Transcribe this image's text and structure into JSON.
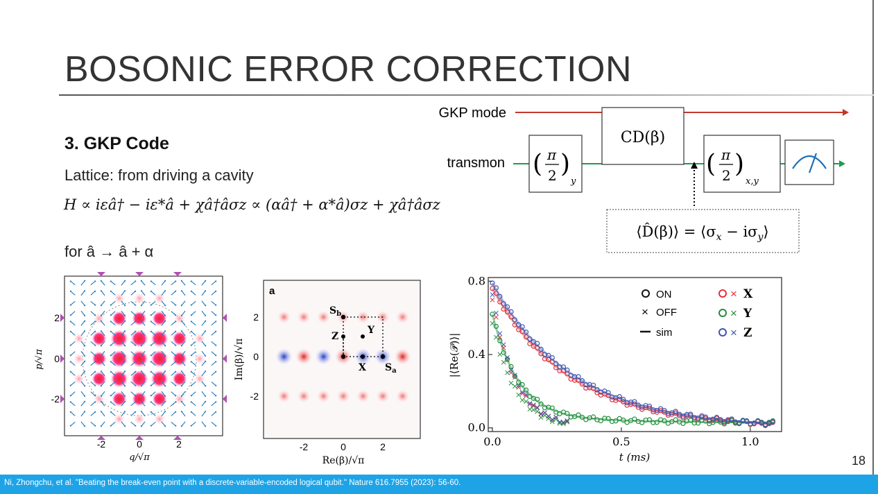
{
  "slide": {
    "title": "BOSONIC ERROR CORRECTION",
    "heading": "3. GKP Code",
    "subline": "Lattice: from driving a cavity",
    "equation": "H ∝ iεâ† − iε*â + χâ†âσz ∝ (αâ† + α*â)σz + χâ†âσz",
    "substitution": "for â → â + α",
    "page_number": "18",
    "citation": "Ni, Zhongchu, et al. \"Beating the break-even point with a discrete-variable-encoded logical qubit.\" Nature 616.7955 (2023): 56-60."
  },
  "circuit": {
    "mode_label": "GKP mode",
    "transmon_label": "transmon",
    "gate1": "(π/2)y",
    "gate_cd": "CD(β)",
    "gate2": "(π/2)x,y",
    "measurement_note": "⟨D̂(β)⟩ = ⟨σx − iσy⟩",
    "colors": {
      "mode_line": "#c0392b",
      "transmon_line": "#1b9e4b",
      "meter": "#1f6fb5"
    }
  },
  "panel1": {
    "xlabel": "q/√π",
    "ylabel": "p/√π",
    "xticks": [
      "-2",
      "0",
      "2"
    ],
    "yticks": [
      "2",
      "0",
      "-2"
    ]
  },
  "panel2": {
    "panel_letter": "a",
    "xlabel": "Re(β)/√π",
    "ylabel": "Im(β)/√π",
    "xticks": [
      "-2",
      "0",
      "2"
    ],
    "yticks": [
      "2",
      "0",
      "-2"
    ],
    "points": {
      "sb": "Sb",
      "sa": "Sa",
      "x": "X",
      "y": "Y",
      "z": "Z"
    }
  },
  "chart_data": {
    "type": "scatter",
    "xlabel": "t (ms)",
    "ylabel": "|⟨Re(𝒫)⟩|",
    "xlim": [
      0,
      1.1
    ],
    "ylim": [
      -0.02,
      0.82
    ],
    "xticks": [
      "0.0",
      "0.5",
      "1.0"
    ],
    "yticks": [
      "0.0",
      "0.4",
      "0.8"
    ],
    "legend": {
      "on": "ON",
      "off": "OFF",
      "sim": "sim"
    },
    "series": [
      {
        "name": "X",
        "color": "#e0313a",
        "amp": 0.76,
        "tau": 0.3
      },
      {
        "name": "Y",
        "color": "#1f8f3a",
        "amp": 0.62,
        "tau": 0.1,
        "tail": 0.045
      },
      {
        "name": "Z",
        "color": "#3c55b0",
        "amp": 0.79,
        "tau": 0.31
      }
    ],
    "off_tau": 0.09
  }
}
